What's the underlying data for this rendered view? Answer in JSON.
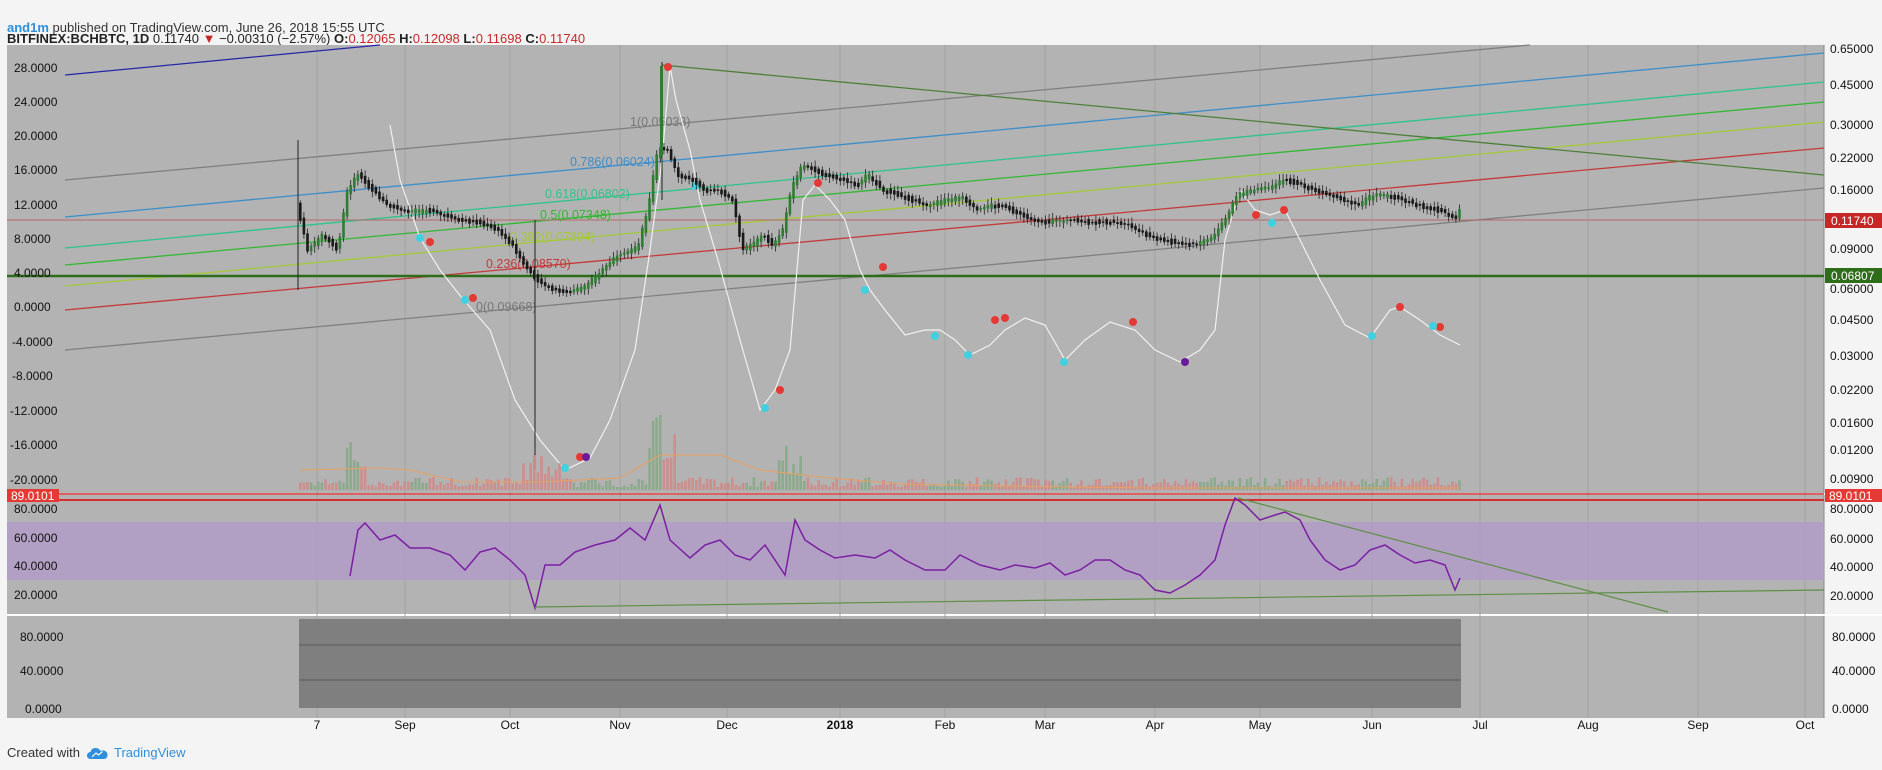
{
  "header": {
    "author": "and1m",
    "published_text": "published on TradingView.com, June 26, 2018 15:55 UTC",
    "symbol": "BITFINEX:BCHBTC, 1D",
    "last": "0.11740",
    "change": "−0.00310 (−2.57%)",
    "o_label": "O:",
    "o": "0.12065",
    "h_label": "H:",
    "h": "0.12098",
    "l_label": "L:",
    "l": "0.11698",
    "c_label": "C:",
    "c": "0.11740"
  },
  "left_axis": [
    "28.0000",
    "24.0000",
    "20.0000",
    "16.0000",
    "12.0000",
    "8.0000",
    "4.0000",
    "0.0000",
    "-4.0000",
    "-8.0000",
    "-12.0000",
    "-16.0000",
    "-20.0000"
  ],
  "right_axis": [
    "0.65000",
    "0.45000",
    "0.30000",
    "0.22000",
    "0.16000",
    "0.09000",
    "0.06000",
    "0.04500",
    "0.03000",
    "0.02200",
    "0.01600",
    "0.01200",
    "0.00900"
  ],
  "price_badges": {
    "last": "0.11740",
    "level": "0.06807",
    "rsi_top": "89.0101"
  },
  "fib_labels": [
    "1(0.05033)",
    "0.786(0.06024)",
    "0.618(0.06802)",
    "0.5(0.07348)",
    "0.382(0.07894)",
    "0.236(0.08570)",
    "0(0.09668)"
  ],
  "rsi_axis": [
    "80.0000",
    "60.0000",
    "40.0000",
    "20.0000"
  ],
  "lower_axis": [
    "80.0000",
    "40.0000",
    "0.0000"
  ],
  "time_axis": [
    "7",
    "Sep",
    "Oct",
    "Nov",
    "Dec",
    "2018",
    "Feb",
    "Mar",
    "Apr",
    "May",
    "Jun",
    "Jul",
    "Aug",
    "Sep",
    "Oct"
  ],
  "colors": {
    "pane_bg": "#b3b3b3",
    "rsi_band": "#b19cc7",
    "rsi_line": "#7b1fa2",
    "up": "#2e7d32",
    "down": "#c62828",
    "brand": "#2f8fdc"
  },
  "footer": {
    "created_with": "Created with",
    "brand": "TradingView"
  }
}
